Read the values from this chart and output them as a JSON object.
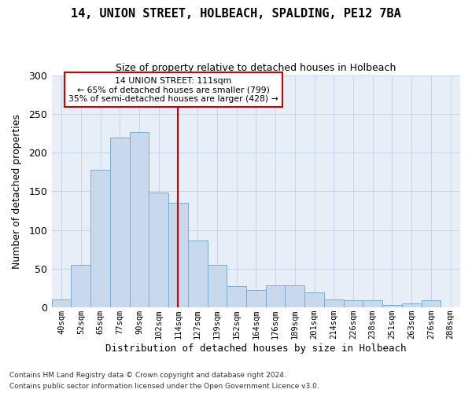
{
  "title_line1": "14, UNION STREET, HOLBEACH, SPALDING, PE12 7BA",
  "title_line2": "Size of property relative to detached houses in Holbeach",
  "xlabel": "Distribution of detached houses by size in Holbeach",
  "ylabel": "Number of detached properties",
  "categories": [
    "40sqm",
    "52sqm",
    "65sqm",
    "77sqm",
    "90sqm",
    "102sqm",
    "114sqm",
    "127sqm",
    "139sqm",
    "152sqm",
    "164sqm",
    "176sqm",
    "189sqm",
    "201sqm",
    "214sqm",
    "226sqm",
    "238sqm",
    "251sqm",
    "263sqm",
    "276sqm",
    "288sqm"
  ],
  "values": [
    10,
    55,
    178,
    219,
    226,
    148,
    135,
    86,
    55,
    28,
    23,
    29,
    29,
    19,
    10,
    9,
    9,
    3,
    5,
    9,
    0
  ],
  "bar_color": "#c8d9ee",
  "bar_edgecolor": "#7aadd4",
  "bar_linewidth": 0.7,
  "vline_index": 6,
  "vline_color": "#cc0000",
  "annotation_line1": "14 UNION STREET: 111sqm",
  "annotation_line2": "← 65% of detached houses are smaller (799)",
  "annotation_line3": "35% of semi-detached houses are larger (428) →",
  "annotation_box_facecolor": "#ffffff",
  "annotation_box_edgecolor": "#cc0000",
  "ylim": [
    0,
    300
  ],
  "yticks": [
    0,
    50,
    100,
    150,
    200,
    250,
    300
  ],
  "grid_color": "#c8d4e8",
  "background_color": "#e8eef8",
  "footnote1": "Contains HM Land Registry data © Crown copyright and database right 2024.",
  "footnote2": "Contains public sector information licensed under the Open Government Licence v3.0."
}
